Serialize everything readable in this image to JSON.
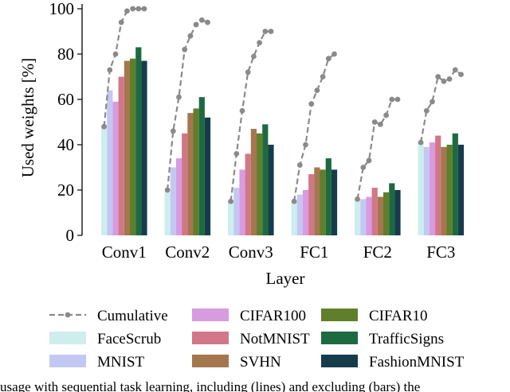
{
  "chart_data": {
    "type": "bar",
    "ylabel": "Used weights [%]",
    "xlabel": "Layer",
    "ylim": [
      0,
      100
    ],
    "yticks": [
      0,
      20,
      40,
      60,
      80,
      100
    ],
    "categories": [
      "Conv1",
      "Conv2",
      "Conv3",
      "FC1",
      "FC2",
      "FC3"
    ],
    "series": [
      {
        "name": "FaceScrub",
        "color": "#cdeeed",
        "values": [
          48,
          19,
          15,
          15,
          16,
          41
        ]
      },
      {
        "name": "MNIST",
        "color": "#c3c8f2",
        "values": [
          64,
          30,
          21,
          18,
          16,
          39
        ]
      },
      {
        "name": "CIFAR100",
        "color": "#d89be0",
        "values": [
          59,
          34,
          29,
          20,
          17,
          41
        ]
      },
      {
        "name": "NotMNIST",
        "color": "#d27787",
        "values": [
          70,
          45,
          36,
          27,
          21,
          44
        ]
      },
      {
        "name": "SVHN",
        "color": "#a4774f",
        "values": [
          77,
          54,
          47,
          30,
          17,
          39
        ]
      },
      {
        "name": "CIFAR10",
        "color": "#5f7f2c",
        "values": [
          78,
          56,
          45,
          29,
          19,
          40
        ]
      },
      {
        "name": "TrafficSigns",
        "color": "#1d6a40",
        "values": [
          83,
          61,
          49,
          34,
          23,
          45
        ]
      },
      {
        "name": "FashionMNIST",
        "color": "#163c4c",
        "values": [
          77,
          52,
          40,
          29,
          20,
          40
        ]
      }
    ],
    "cumulative": {
      "name": "Cumulative",
      "color": "#8a8a8a",
      "values": [
        [
          48,
          73,
          80,
          94,
          99,
          100,
          100,
          100
        ],
        [
          20,
          46,
          61,
          82,
          88,
          93,
          95,
          94
        ],
        [
          15,
          36,
          55,
          72,
          79,
          85,
          90,
          90
        ],
        [
          15,
          31,
          40,
          58,
          64,
          70,
          78,
          80
        ],
        [
          16,
          30,
          33,
          50,
          49,
          53,
          60,
          60
        ],
        [
          41,
          55,
          59,
          70,
          68,
          69,
          73,
          71
        ]
      ]
    },
    "legend": {
      "placement": "bottom",
      "order": [
        "Cumulative",
        "CIFAR100",
        "CIFAR10",
        "FaceScrub",
        "NotMNIST",
        "TrafficSigns",
        "MNIST",
        "SVHN",
        "FashionMNIST"
      ]
    }
  },
  "caption": "usage with sequential task learning, including (lines) and excluding (bars) the"
}
